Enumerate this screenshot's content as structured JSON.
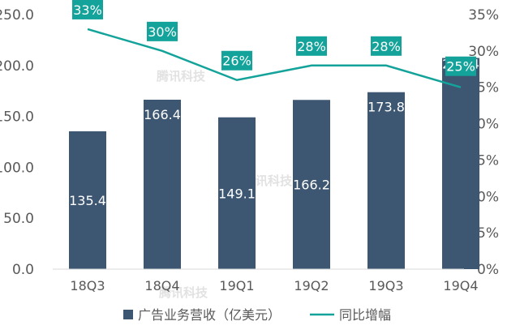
{
  "chart_data": {
    "type": "bar",
    "categories": [
      "18Q3",
      "18Q4",
      "19Q1",
      "19Q2",
      "19Q3",
      "19Q4"
    ],
    "series": [
      {
        "name": "广告业务营收（亿美元）",
        "type": "bar",
        "axis": "left",
        "values": [
          135.4,
          166.4,
          149.1,
          166.2,
          173.8,
          207.4
        ],
        "labels": [
          "135.4",
          "166.4",
          "149.1",
          "166.2",
          "173.8",
          "207.4"
        ]
      },
      {
        "name": "同比增幅",
        "type": "line",
        "axis": "right",
        "values": [
          33,
          30,
          26,
          28,
          28,
          25
        ],
        "labels": [
          "33%",
          "30%",
          "26%",
          "28%",
          "28%",
          "25%"
        ]
      }
    ],
    "y_left": {
      "ylim": [
        0,
        250
      ],
      "ticks": [
        "0.0",
        "50.0",
        "100.0",
        "150.0",
        "200.0",
        "250.0"
      ]
    },
    "y_right": {
      "ylim": [
        0,
        35
      ],
      "ticks": [
        "0%",
        "5%",
        "10%",
        "15%",
        "20%",
        "25%",
        "30%",
        "35%"
      ]
    },
    "watermark": "腾讯科技",
    "grid": false,
    "legend_position": "bottom",
    "colors": {
      "bar": "#3d5672",
      "line": "#14a39a",
      "label_box": "#14a39a",
      "axis_text": "#595959",
      "bar_label": "#ffffff"
    }
  }
}
